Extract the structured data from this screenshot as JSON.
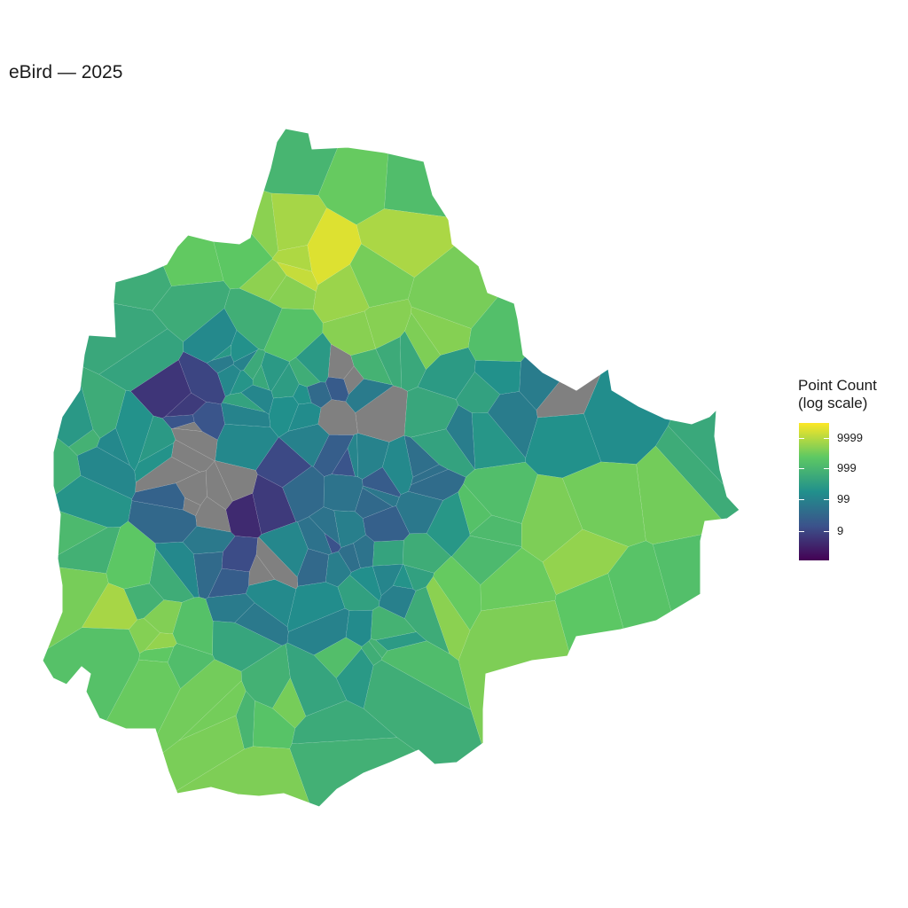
{
  "title": "eBird — 2025",
  "legend": {
    "title_line1": "Point Count",
    "title_line2": "(log scale)",
    "ticks": [
      "9999",
      "999",
      "99",
      "9"
    ],
    "tick_values": [
      9999,
      999,
      99,
      9
    ],
    "scale": "log",
    "range": [
      1,
      30000
    ],
    "palette": "viridis",
    "colors": [
      "#440154",
      "#3b528b",
      "#21908c",
      "#5dc863",
      "#fde725"
    ],
    "no_data_color": "#808080",
    "placement": "right"
  },
  "map_data": {
    "type": "choropleth",
    "region_count": 198,
    "seed": 2025
  }
}
